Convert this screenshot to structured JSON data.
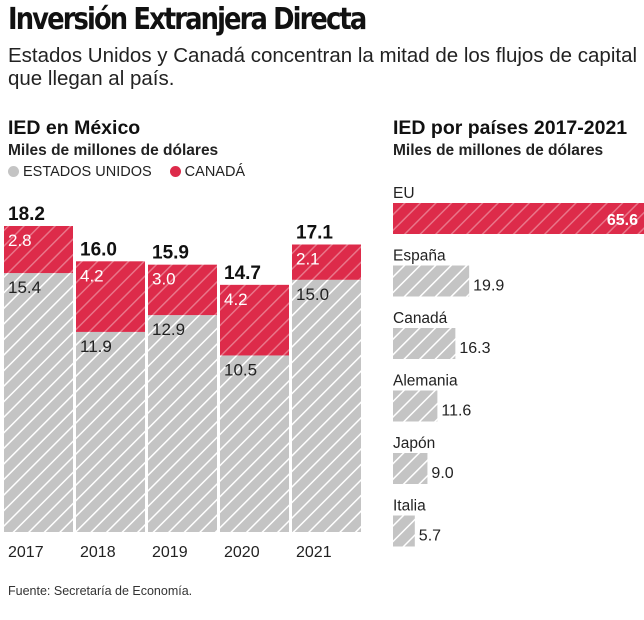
{
  "header": {
    "title": "Inversión Extranjera Directa",
    "subtitle": "Estados Unidos y Canadá  concentran la mitad de los flujos de capital que llegan al país."
  },
  "left_chart": {
    "title": "IED en México",
    "unit": "Miles de millones de dólares"
  },
  "right_chart": {
    "title": "IED por países 2017-2021",
    "unit": "Miles de millones de dólares"
  },
  "legend": {
    "us": "ESTADOS UNIDOS",
    "ca": "CANADÁ"
  },
  "source": "Fuente: Secretaría de Economía.",
  "colors": {
    "us": "#c4c4c4",
    "ca": "#dd2b4a",
    "hatch": "#ffffff"
  },
  "chart_data": [
    {
      "type": "bar",
      "stacked": true,
      "title": "IED en México",
      "ylabel": "Miles de millones de dólares",
      "categories": [
        "2017",
        "2018",
        "2019",
        "2020",
        "2021"
      ],
      "series": [
        {
          "name": "ESTADOS UNIDOS",
          "values": [
            15.4,
            11.9,
            12.9,
            10.5,
            15.0
          ]
        },
        {
          "name": "CANADÁ",
          "values": [
            2.8,
            4.2,
            3.0,
            4.2,
            2.1
          ]
        }
      ],
      "totals": [
        18.2,
        16.0,
        15.9,
        14.7,
        17.1
      ],
      "value_labels_us": [
        "15.4",
        "11.9",
        "12.9",
        "10.5",
        "15.0"
      ],
      "value_labels_ca": [
        "2.8",
        "4.2",
        "3.0",
        "4.2",
        "2.1"
      ],
      "total_labels": [
        "18.2",
        "16.0",
        "15.9",
        "14.7",
        "17.1"
      ],
      "ylim": [
        0,
        18.2
      ],
      "legend_position": "top-left",
      "grid": false
    },
    {
      "type": "bar",
      "orientation": "horizontal",
      "title": "IED por países 2017-2021",
      "xlabel": "Miles de millones de dólares",
      "categories": [
        "EU",
        "España",
        "Canadá",
        "Alemania",
        "Japón",
        "Italia"
      ],
      "values": [
        65.6,
        19.9,
        16.3,
        11.6,
        9.0,
        5.7
      ],
      "value_labels": [
        "65.6",
        "19.9",
        "16.3",
        "11.6",
        "9.0",
        "5.7"
      ],
      "highlight": "EU",
      "xlim": [
        0,
        65.6
      ],
      "grid": false
    }
  ]
}
